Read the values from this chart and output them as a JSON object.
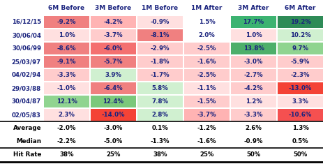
{
  "col_headers": [
    "6M Before",
    "3M Before",
    "1M Before",
    "1M After",
    "3M After",
    "6M After"
  ],
  "row_labels": [
    "16/12/15",
    "30/06/04",
    "30/06/99",
    "25/03/97",
    "04/02/94",
    "29/03/88",
    "30/04/87",
    "02/05/83"
  ],
  "data": [
    [
      -9.2,
      -4.2,
      -0.9,
      1.5,
      17.7,
      19.2
    ],
    [
      1.0,
      -3.7,
      -8.1,
      2.0,
      1.0,
      10.2
    ],
    [
      -8.6,
      -6.0,
      -2.9,
      -2.5,
      13.8,
      9.7
    ],
    [
      -9.1,
      -5.7,
      -1.8,
      -1.6,
      -3.0,
      -5.9
    ],
    [
      -3.3,
      3.9,
      -1.7,
      -2.5,
      -2.7,
      -2.3
    ],
    [
      -1.0,
      -6.4,
      5.8,
      -1.1,
      -4.2,
      -13.0
    ],
    [
      12.1,
      12.4,
      7.8,
      -1.5,
      1.2,
      3.3
    ],
    [
      2.3,
      -14.0,
      2.8,
      -3.7,
      -3.3,
      -10.6
    ]
  ],
  "summary_data": [
    [
      -2.0,
      -3.0,
      0.1,
      -1.2,
      2.6,
      1.3
    ],
    [
      -2.2,
      -5.0,
      -1.3,
      -1.6,
      -0.9,
      0.5
    ]
  ],
  "hit_rate": [
    "38%",
    "25%",
    "38%",
    "25%",
    "50%",
    "50%"
  ],
  "text_color": "#1a237e",
  "cell_colors": [
    [
      "#f08080",
      "#ffb3b3",
      "#ffe0e0",
      "#ffffff",
      "#3cb371",
      "#2e8b57"
    ],
    [
      "#ffe0e0",
      "#ffcccc",
      "#f08080",
      "#ffffff",
      "#ffe0e0",
      "#d0f0d0"
    ],
    [
      "#f08080",
      "#f47070",
      "#ffcccc",
      "#ffcccc",
      "#4daf6a",
      "#90d490"
    ],
    [
      "#f08080",
      "#f08080",
      "#ffcccc",
      "#ffcccc",
      "#ffcccc",
      "#ffcccc"
    ],
    [
      "#ffcccc",
      "#d0f0d0",
      "#ffcccc",
      "#ffcccc",
      "#ffcccc",
      "#ffcccc"
    ],
    [
      "#ffe0e0",
      "#f08080",
      "#d0f0d0",
      "#ffe0e0",
      "#ffcccc",
      "#f44336"
    ],
    [
      "#90d490",
      "#7bc87b",
      "#d0f0d0",
      "#ffcccc",
      "#ffe0e0",
      "#ffe0e0"
    ],
    [
      "#ffe0e0",
      "#f44336",
      "#d0f0d0",
      "#ffb3b3",
      "#ffcccc",
      "#f55050"
    ]
  ]
}
